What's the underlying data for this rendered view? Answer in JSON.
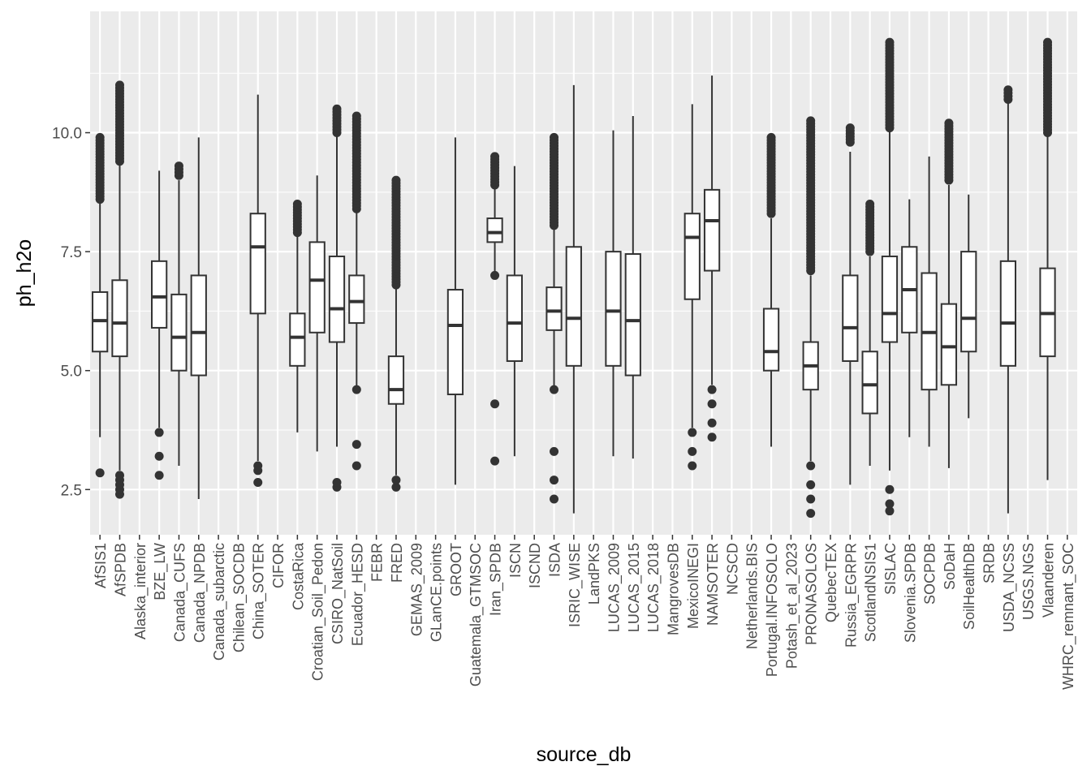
{
  "chart_data": {
    "type": "boxplot",
    "xlabel": "source_db",
    "ylabel": "ph_h2o",
    "ylim": [
      1.55,
      12.55
    ],
    "yticks": [
      2.5,
      5.0,
      7.5,
      10.0
    ],
    "ytick_labels": [
      "2.5",
      "5.0",
      "7.5",
      "10.0"
    ],
    "grid": true,
    "colors": {
      "panel": "#ebebeb",
      "grid": "#ffffff",
      "box_line": "#333333",
      "box_fill": "#ffffff",
      "point": "#333333"
    },
    "categories": [
      "AfSIS1",
      "AfSPDB",
      "Alaska_interior",
      "BZE_LW",
      "Canada_CUFS",
      "Canada_NPDB",
      "Canada_subarctic",
      "Chilean_SOCDB",
      "China_SOTER",
      "CIFOR",
      "CostaRica",
      "Croatian_Soil_Pedon",
      "CSIRO_NatSoil",
      "Ecuador_HESD",
      "FEBR",
      "FRED",
      "GEMAS_2009",
      "GLanCE.points",
      "GROOT",
      "Guatemala_GTMSOC",
      "Iran_SPDB",
      "ISCN",
      "ISCND",
      "ISDA",
      "ISRIC_WISE",
      "LandPKS",
      "LUCAS_2009",
      "LUCAS_2015",
      "LUCAS_2018",
      "MangrovesDB",
      "MexicoINEGI",
      "NAMSOTER",
      "NCSCD",
      "Netherlands.BIS",
      "Portugal.INFOSOLO",
      "Potash_et_al_2023",
      "PRONASOLOS",
      "QuebecTEX",
      "Russia_EGRPR",
      "ScotlandNSIS1",
      "SISLAC",
      "Slovenia.SPDB",
      "SOCPDB",
      "SoDaH",
      "SoilHealthDB",
      "SRDB",
      "USDA_NCSS",
      "USGS.NGS",
      "Vlaanderen",
      "WHRC_remnant_SOC"
    ],
    "boxes": [
      {
        "category": "AfSIS1",
        "min": 3.6,
        "q1": 5.4,
        "median": 6.05,
        "q3": 6.65,
        "max": 8.6,
        "outliers_low": [
          2.85
        ],
        "outliers_high_range": [
          8.6,
          9.9
        ]
      },
      {
        "category": "AfSPDB",
        "min": 2.9,
        "q1": 5.3,
        "median": 6.0,
        "q3": 6.9,
        "max": 9.35,
        "outliers_low": [
          2.4,
          2.5,
          2.6,
          2.7,
          2.8
        ],
        "outliers_high_range": [
          9.4,
          11.0
        ]
      },
      {
        "category": "Alaska_interior",
        "min": null,
        "q1": null,
        "median": null,
        "q3": null,
        "max": null,
        "outliers_low": [],
        "outliers_high_range": []
      },
      {
        "category": "BZE_LW",
        "min": 3.8,
        "q1": 5.9,
        "median": 6.55,
        "q3": 7.3,
        "max": 9.2,
        "outliers_low": [
          2.8,
          3.2,
          3.7
        ],
        "outliers_high_range": []
      },
      {
        "category": "Canada_CUFS",
        "min": 3.0,
        "q1": 5.0,
        "median": 5.7,
        "q3": 6.6,
        "max": 9.0,
        "outliers_low": [],
        "outliers_high_range": [
          9.1,
          9.3
        ]
      },
      {
        "category": "Canada_NPDB",
        "min": 2.3,
        "q1": 4.9,
        "median": 5.8,
        "q3": 7.0,
        "max": 9.9,
        "outliers_low": [],
        "outliers_high_range": []
      },
      {
        "category": "Canada_subarctic",
        "min": null,
        "q1": null,
        "median": null,
        "q3": null,
        "max": null,
        "outliers_low": [],
        "outliers_high_range": []
      },
      {
        "category": "Chilean_SOCDB",
        "min": null,
        "q1": null,
        "median": null,
        "q3": null,
        "max": null,
        "outliers_low": [],
        "outliers_high_range": []
      },
      {
        "category": "China_SOTER",
        "min": 3.1,
        "q1": 6.2,
        "median": 7.6,
        "q3": 8.3,
        "max": 10.8,
        "outliers_low": [
          2.65,
          2.9,
          3.0
        ],
        "outliers_high_range": []
      },
      {
        "category": "CIFOR",
        "min": null,
        "q1": null,
        "median": null,
        "q3": null,
        "max": null,
        "outliers_low": [],
        "outliers_high_range": []
      },
      {
        "category": "CostaRica",
        "min": 3.7,
        "q1": 5.1,
        "median": 5.7,
        "q3": 6.2,
        "max": 7.9,
        "outliers_low": [],
        "outliers_high_range": [
          7.9,
          8.5
        ]
      },
      {
        "category": "Croatian_Soil_Pedon",
        "min": 3.3,
        "q1": 5.8,
        "median": 6.9,
        "q3": 7.7,
        "max": 9.1,
        "outliers_low": [],
        "outliers_high_range": []
      },
      {
        "category": "CSIRO_NatSoil",
        "min": 3.4,
        "q1": 5.6,
        "median": 6.3,
        "q3": 7.4,
        "max": 10.0,
        "outliers_low": [
          2.55,
          2.65
        ],
        "outliers_high_range": [
          10.0,
          10.5
        ]
      },
      {
        "category": "Ecuador_HESD",
        "min": 4.6,
        "q1": 6.0,
        "median": 6.45,
        "q3": 7.0,
        "max": 8.4,
        "outliers_low": [
          3.0,
          3.45,
          4.6
        ],
        "outliers_high_range": [
          8.4,
          10.35
        ]
      },
      {
        "category": "FEBR",
        "min": null,
        "q1": null,
        "median": null,
        "q3": null,
        "max": null,
        "outliers_low": [],
        "outliers_high_range": []
      },
      {
        "category": "FRED",
        "min": 2.8,
        "q1": 4.3,
        "median": 4.6,
        "q3": 5.3,
        "max": 6.8,
        "outliers_low": [
          2.55,
          2.7
        ],
        "outliers_high_range": [
          6.8,
          9.0
        ]
      },
      {
        "category": "GEMAS_2009",
        "min": null,
        "q1": null,
        "median": null,
        "q3": null,
        "max": null,
        "outliers_low": [],
        "outliers_high_range": []
      },
      {
        "category": "GLanCE.points",
        "min": null,
        "q1": null,
        "median": null,
        "q3": null,
        "max": null,
        "outliers_low": [],
        "outliers_high_range": []
      },
      {
        "category": "GROOT",
        "min": 2.6,
        "q1": 4.5,
        "median": 5.95,
        "q3": 6.7,
        "max": 9.9,
        "outliers_low": [],
        "outliers_high_range": []
      },
      {
        "category": "Guatemala_GTMSOC",
        "min": null,
        "q1": null,
        "median": null,
        "q3": null,
        "max": null,
        "outliers_low": [],
        "outliers_high_range": []
      },
      {
        "category": "Iran_SPDB",
        "min": 7.0,
        "q1": 7.7,
        "median": 7.9,
        "q3": 8.2,
        "max": 8.9,
        "outliers_low": [
          3.1,
          4.3,
          7.0
        ],
        "outliers_high_range": [
          8.9,
          9.5
        ]
      },
      {
        "category": "ISCN",
        "min": 3.2,
        "q1": 5.2,
        "median": 6.0,
        "q3": 7.0,
        "max": 9.3,
        "outliers_low": [],
        "outliers_high_range": []
      },
      {
        "category": "ISCND",
        "min": null,
        "q1": null,
        "median": null,
        "q3": null,
        "max": null,
        "outliers_low": [],
        "outliers_high_range": []
      },
      {
        "category": "ISDA",
        "min": 4.6,
        "q1": 5.85,
        "median": 6.25,
        "q3": 6.75,
        "max": 8.05,
        "outliers_low": [
          2.3,
          2.7,
          3.3,
          4.6
        ],
        "outliers_high_range": [
          8.05,
          9.9
        ]
      },
      {
        "category": "ISRIC_WISE",
        "min": 2.0,
        "q1": 5.1,
        "median": 6.1,
        "q3": 7.6,
        "max": 11.0,
        "outliers_low": [],
        "outliers_high_range": []
      },
      {
        "category": "LandPKS",
        "min": null,
        "q1": null,
        "median": null,
        "q3": null,
        "max": null,
        "outliers_low": [],
        "outliers_high_range": []
      },
      {
        "category": "LUCAS_2009",
        "min": 3.2,
        "q1": 5.1,
        "median": 6.25,
        "q3": 7.5,
        "max": 10.05,
        "outliers_low": [],
        "outliers_high_range": []
      },
      {
        "category": "LUCAS_2015",
        "min": 3.15,
        "q1": 4.9,
        "median": 6.05,
        "q3": 7.45,
        "max": 10.35,
        "outliers_low": [],
        "outliers_high_range": []
      },
      {
        "category": "LUCAS_2018",
        "min": null,
        "q1": null,
        "median": null,
        "q3": null,
        "max": null,
        "outliers_low": [],
        "outliers_high_range": []
      },
      {
        "category": "MangrovesDB",
        "min": null,
        "q1": null,
        "median": null,
        "q3": null,
        "max": null,
        "outliers_low": [],
        "outliers_high_range": []
      },
      {
        "category": "MexicoINEGI",
        "min": 3.8,
        "q1": 6.5,
        "median": 7.8,
        "q3": 8.3,
        "max": 10.6,
        "outliers_low": [
          3.0,
          3.3,
          3.7
        ],
        "outliers_high_range": []
      },
      {
        "category": "NAMSOTER",
        "min": 4.7,
        "q1": 7.1,
        "median": 8.15,
        "q3": 8.8,
        "max": 11.2,
        "outliers_low": [
          3.6,
          3.9,
          4.3,
          4.6
        ],
        "outliers_high_range": []
      },
      {
        "category": "NCSCD",
        "min": null,
        "q1": null,
        "median": null,
        "q3": null,
        "max": null,
        "outliers_low": [],
        "outliers_high_range": []
      },
      {
        "category": "Netherlands.BIS",
        "min": null,
        "q1": null,
        "median": null,
        "q3": null,
        "max": null,
        "outliers_low": [],
        "outliers_high_range": []
      },
      {
        "category": "Portugal.INFOSOLO",
        "min": 3.4,
        "q1": 5.0,
        "median": 5.4,
        "q3": 6.3,
        "max": 8.2,
        "outliers_low": [],
        "outliers_high_range": [
          8.3,
          9.9
        ]
      },
      {
        "category": "Potash_et_al_2023",
        "min": null,
        "q1": null,
        "median": null,
        "q3": null,
        "max": null,
        "outliers_low": [],
        "outliers_high_range": []
      },
      {
        "category": "PRONASOLOS",
        "min": 3.1,
        "q1": 4.6,
        "median": 5.1,
        "q3": 5.6,
        "max": 7.0,
        "outliers_low": [
          2.0,
          2.3,
          2.6,
          3.0
        ],
        "outliers_high_range": [
          7.1,
          10.25
        ]
      },
      {
        "category": "QuebecTEX",
        "min": null,
        "q1": null,
        "median": null,
        "q3": null,
        "max": null,
        "outliers_low": [],
        "outliers_high_range": []
      },
      {
        "category": "Russia_EGRPR",
        "min": 2.6,
        "q1": 5.2,
        "median": 5.9,
        "q3": 7.0,
        "max": 9.6,
        "outliers_low": [],
        "outliers_high_range": [
          9.8,
          10.1
        ]
      },
      {
        "category": "ScotlandNSIS1",
        "min": 3.0,
        "q1": 4.1,
        "median": 4.7,
        "q3": 5.4,
        "max": 7.4,
        "outliers_low": [],
        "outliers_high_range": [
          7.5,
          8.5
        ]
      },
      {
        "category": "SISLAC",
        "min": 2.9,
        "q1": 5.6,
        "median": 6.2,
        "q3": 7.4,
        "max": 10.1,
        "outliers_low": [
          2.05,
          2.2,
          2.5
        ],
        "outliers_high_range": [
          10.1,
          11.9
        ]
      },
      {
        "category": "Slovenia.SPDB",
        "min": 3.6,
        "q1": 5.8,
        "median": 6.7,
        "q3": 7.6,
        "max": 8.6,
        "outliers_low": [],
        "outliers_high_range": []
      },
      {
        "category": "SOCPDB",
        "min": 3.4,
        "q1": 4.6,
        "median": 5.8,
        "q3": 7.05,
        "max": 9.5,
        "outliers_low": [],
        "outliers_high_range": []
      },
      {
        "category": "SoDaH",
        "min": 2.95,
        "q1": 4.7,
        "median": 5.5,
        "q3": 6.4,
        "max": 8.9,
        "outliers_low": [],
        "outliers_high_range": [
          9.0,
          10.2
        ]
      },
      {
        "category": "SoilHealthDB",
        "min": 4.0,
        "q1": 5.4,
        "median": 6.1,
        "q3": 7.5,
        "max": 8.7,
        "outliers_low": [],
        "outliers_high_range": []
      },
      {
        "category": "SRDB",
        "min": null,
        "q1": null,
        "median": null,
        "q3": null,
        "max": null,
        "outliers_low": [],
        "outliers_high_range": []
      },
      {
        "category": "USDA_NCSS",
        "min": 2.0,
        "q1": 5.1,
        "median": 6.0,
        "q3": 7.3,
        "max": 10.7,
        "outliers_low": [],
        "outliers_high_range": [
          10.7,
          10.9
        ]
      },
      {
        "category": "USGS.NGS",
        "min": null,
        "q1": null,
        "median": null,
        "q3": null,
        "max": null,
        "outliers_low": [],
        "outliers_high_range": []
      },
      {
        "category": "Vlaanderen",
        "min": 2.7,
        "q1": 5.3,
        "median": 6.2,
        "q3": 7.15,
        "max": 10.0,
        "outliers_low": [],
        "outliers_high_range": [
          10.0,
          11.9
        ]
      },
      {
        "category": "WHRC_remnant_SOC",
        "min": null,
        "q1": null,
        "median": null,
        "q3": null,
        "max": null,
        "outliers_low": [],
        "outliers_high_range": []
      }
    ]
  }
}
